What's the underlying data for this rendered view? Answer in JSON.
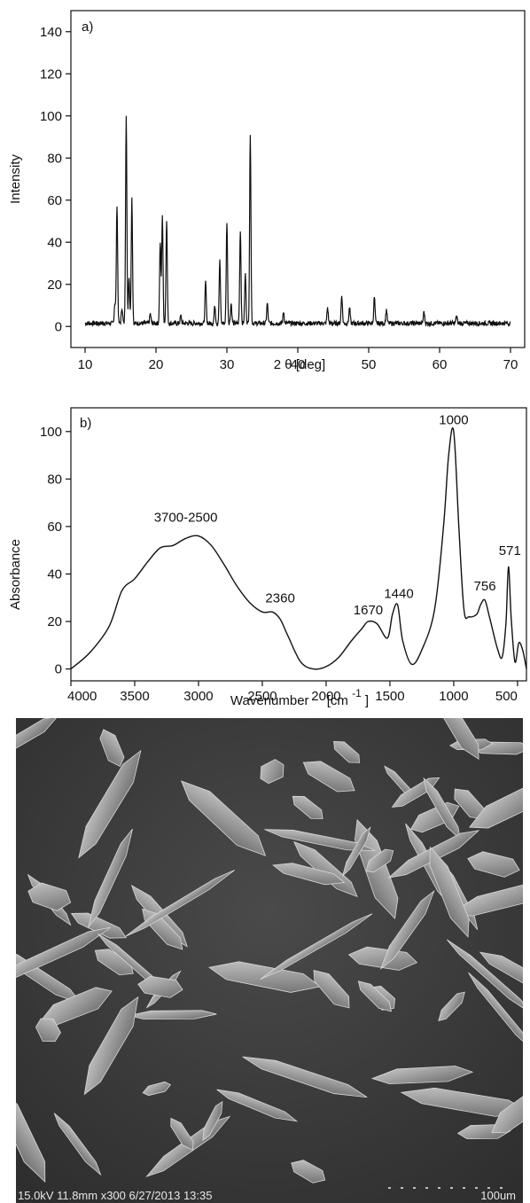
{
  "chart_data": [
    {
      "type": "line",
      "panel_label": "a)",
      "xlabel": "2 θ [deg]",
      "ylabel": "Intensity",
      "xlim": [
        8,
        72
      ],
      "ylim": [
        -10,
        150
      ],
      "xticks": [
        "10",
        "20",
        "30",
        "40",
        "50",
        "60",
        "70"
      ],
      "yticks": [
        "0",
        "20",
        "40",
        "60",
        "80",
        "100",
        "120",
        "140"
      ],
      "peaks": [
        {
          "x": 14.2,
          "y": 11
        },
        {
          "x": 14.5,
          "y": 58
        },
        {
          "x": 15.2,
          "y": 9
        },
        {
          "x": 15.8,
          "y": 100
        },
        {
          "x": 16.2,
          "y": 24
        },
        {
          "x": 16.6,
          "y": 61
        },
        {
          "x": 19.2,
          "y": 6
        },
        {
          "x": 20.6,
          "y": 40
        },
        {
          "x": 20.9,
          "y": 53
        },
        {
          "x": 21.5,
          "y": 51
        },
        {
          "x": 23.5,
          "y": 5
        },
        {
          "x": 27.0,
          "y": 21
        },
        {
          "x": 28.3,
          "y": 10
        },
        {
          "x": 29.0,
          "y": 31
        },
        {
          "x": 30.0,
          "y": 50
        },
        {
          "x": 30.6,
          "y": 11
        },
        {
          "x": 31.9,
          "y": 46
        },
        {
          "x": 32.6,
          "y": 25
        },
        {
          "x": 33.3,
          "y": 92
        },
        {
          "x": 35.7,
          "y": 11
        },
        {
          "x": 38.0,
          "y": 7
        },
        {
          "x": 44.2,
          "y": 9
        },
        {
          "x": 46.2,
          "y": 15
        },
        {
          "x": 47.3,
          "y": 9
        },
        {
          "x": 50.8,
          "y": 14
        },
        {
          "x": 52.5,
          "y": 8
        },
        {
          "x": 57.8,
          "y": 7
        },
        {
          "x": 62.4,
          "y": 5
        }
      ],
      "baseline": 1.5,
      "x_range": [
        10,
        70
      ]
    },
    {
      "type": "line",
      "panel_label": "b)",
      "xlabel": "Wavenumber",
      "xunit": "[cm",
      "xunit_sup": "-1",
      "xunit_close": "]",
      "ylabel": "Absorbance",
      "xlim": [
        4000,
        430
      ],
      "ylim": [
        -5,
        110
      ],
      "xticks": [
        "4000",
        "3500",
        "3000",
        "2500",
        "2000",
        "1500",
        "1000",
        "500"
      ],
      "yticks": [
        "0",
        "20",
        "40",
        "60",
        "80",
        "100"
      ],
      "x": [
        4000,
        3850,
        3700,
        3600,
        3500,
        3400,
        3300,
        3200,
        3100,
        3000,
        2900,
        2800,
        2700,
        2600,
        2500,
        2420,
        2360,
        2300,
        2200,
        2100,
        2000,
        1900,
        1800,
        1720,
        1670,
        1600,
        1520,
        1480,
        1440,
        1400,
        1330,
        1250,
        1150,
        1080,
        1040,
        1000,
        960,
        920,
        880,
        820,
        790,
        756,
        720,
        660,
        620,
        590,
        571,
        550,
        520,
        490,
        460,
        430
      ],
      "y": [
        0,
        7,
        18,
        33,
        38,
        45,
        51,
        52,
        55,
        56,
        52,
        44,
        35,
        28,
        24,
        24,
        21,
        14,
        3,
        0,
        1,
        5,
        12,
        17,
        20,
        19,
        13,
        23,
        27,
        12,
        2,
        8,
        25,
        60,
        90,
        100,
        60,
        25,
        22,
        23,
        27,
        29,
        22,
        9,
        5,
        20,
        43,
        22,
        3,
        11,
        8,
        0
      ],
      "annotations": [
        "3700-2500",
        "2360",
        "1670",
        "1440",
        "1000",
        "756",
        "571"
      ]
    }
  ],
  "sem": {
    "info_left": "15.0kV 11.8mm x300  6/27/2013 13:35",
    "scale_label": "100um"
  }
}
